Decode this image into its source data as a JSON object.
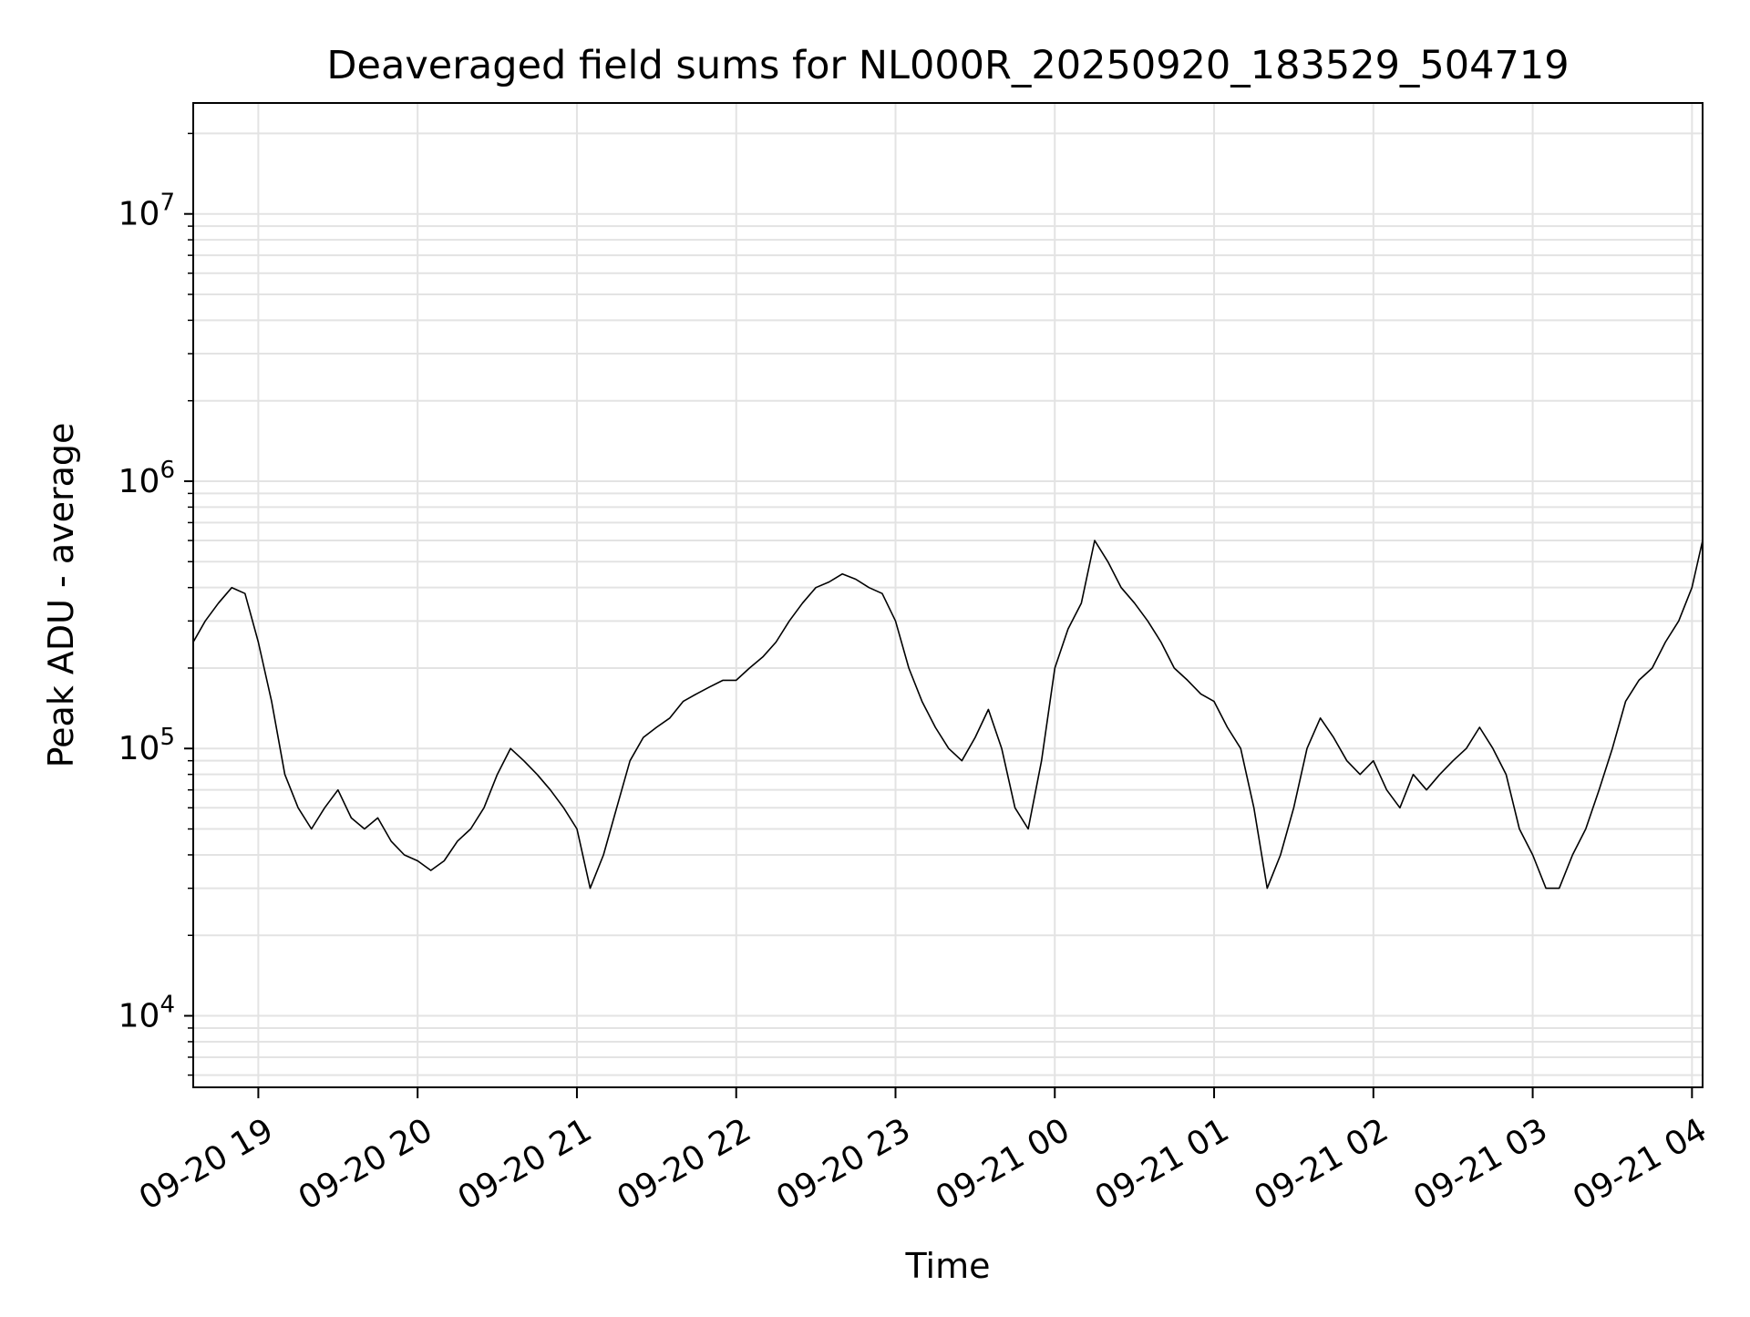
{
  "chart_data": {
    "type": "line",
    "title": "Deaveraged field sums for NL000R_20250920_183529_504719",
    "xlabel": "Time",
    "ylabel": "Peak ADU - average",
    "yscale": "log",
    "ylim": [
      5400,
      26000000
    ],
    "xlim": [
      "2025-09-20T18:35:29",
      "2025-09-21T04:04:00"
    ],
    "grid": true,
    "legend": "none",
    "line_color": "#000000",
    "x_ticks": [
      {
        "t": "2025-09-20T19:00:00",
        "label": "09-20 19"
      },
      {
        "t": "2025-09-20T20:00:00",
        "label": "09-20 20"
      },
      {
        "t": "2025-09-20T21:00:00",
        "label": "09-20 21"
      },
      {
        "t": "2025-09-20T22:00:00",
        "label": "09-20 22"
      },
      {
        "t": "2025-09-20T23:00:00",
        "label": "09-20 23"
      },
      {
        "t": "2025-09-21T00:00:00",
        "label": "09-21 00"
      },
      {
        "t": "2025-09-21T01:00:00",
        "label": "09-21 01"
      },
      {
        "t": "2025-09-21T02:00:00",
        "label": "09-21 02"
      },
      {
        "t": "2025-09-21T03:00:00",
        "label": "09-21 03"
      },
      {
        "t": "2025-09-21T04:00:00",
        "label": "09-21 04"
      }
    ],
    "y_ticks": [
      {
        "value": 10000,
        "base": "10",
        "exp": "4"
      },
      {
        "value": 100000,
        "base": "10",
        "exp": "5"
      },
      {
        "value": 1000000,
        "base": "10",
        "exp": "6"
      },
      {
        "value": 10000000,
        "base": "10",
        "exp": "7"
      }
    ],
    "series": [
      {
        "x": [
          "2025-09-20T18:35:29",
          "2025-09-20T18:40:00",
          "2025-09-20T18:45:00",
          "2025-09-20T18:50:00",
          "2025-09-20T18:55:00",
          "2025-09-20T19:00:00",
          "2025-09-20T19:05:00",
          "2025-09-20T19:10:00",
          "2025-09-20T19:15:00",
          "2025-09-20T19:20:00",
          "2025-09-20T19:25:00",
          "2025-09-20T19:30:00",
          "2025-09-20T19:35:00",
          "2025-09-20T19:40:00",
          "2025-09-20T19:45:00",
          "2025-09-20T19:50:00",
          "2025-09-20T19:55:00",
          "2025-09-20T20:00:00",
          "2025-09-20T20:05:00",
          "2025-09-20T20:10:00",
          "2025-09-20T20:15:00",
          "2025-09-20T20:20:00",
          "2025-09-20T20:25:00",
          "2025-09-20T20:30:00",
          "2025-09-20T20:35:00",
          "2025-09-20T20:40:00",
          "2025-09-20T20:45:00",
          "2025-09-20T20:50:00",
          "2025-09-20T20:55:00",
          "2025-09-20T21:00:00",
          "2025-09-20T21:05:00",
          "2025-09-20T21:10:00",
          "2025-09-20T21:15:00",
          "2025-09-20T21:20:00",
          "2025-09-20T21:25:00",
          "2025-09-20T21:30:00",
          "2025-09-20T21:35:00",
          "2025-09-20T21:40:00",
          "2025-09-20T21:45:00",
          "2025-09-20T21:50:00",
          "2025-09-20T21:55:00",
          "2025-09-20T22:00:00",
          "2025-09-20T22:05:00",
          "2025-09-20T22:10:00",
          "2025-09-20T22:15:00",
          "2025-09-20T22:20:00",
          "2025-09-20T22:25:00",
          "2025-09-20T22:30:00",
          "2025-09-20T22:35:00",
          "2025-09-20T22:40:00",
          "2025-09-20T22:45:00",
          "2025-09-20T22:50:00",
          "2025-09-20T22:55:00",
          "2025-09-20T23:00:00",
          "2025-09-20T23:05:00",
          "2025-09-20T23:10:00",
          "2025-09-20T23:15:00",
          "2025-09-20T23:20:00",
          "2025-09-20T23:25:00",
          "2025-09-20T23:30:00",
          "2025-09-20T23:35:00",
          "2025-09-20T23:40:00",
          "2025-09-20T23:45:00",
          "2025-09-20T23:50:00",
          "2025-09-20T23:55:00",
          "2025-09-21T00:00:00",
          "2025-09-21T00:05:00",
          "2025-09-21T00:10:00",
          "2025-09-21T00:15:00",
          "2025-09-21T00:20:00",
          "2025-09-21T00:25:00",
          "2025-09-21T00:30:00",
          "2025-09-21T00:35:00",
          "2025-09-21T00:40:00",
          "2025-09-21T00:45:00",
          "2025-09-21T00:50:00",
          "2025-09-21T00:55:00",
          "2025-09-21T01:00:00",
          "2025-09-21T01:05:00",
          "2025-09-21T01:10:00",
          "2025-09-21T01:15:00",
          "2025-09-21T01:20:00",
          "2025-09-21T01:25:00",
          "2025-09-21T01:30:00",
          "2025-09-21T01:35:00",
          "2025-09-21T01:40:00",
          "2025-09-21T01:45:00",
          "2025-09-21T01:50:00",
          "2025-09-21T01:55:00",
          "2025-09-21T02:00:00",
          "2025-09-21T02:05:00",
          "2025-09-21T02:10:00",
          "2025-09-21T02:15:00",
          "2025-09-21T02:20:00",
          "2025-09-21T02:25:00",
          "2025-09-21T02:30:00",
          "2025-09-21T02:35:00",
          "2025-09-21T02:40:00",
          "2025-09-21T02:45:00",
          "2025-09-21T02:50:00",
          "2025-09-21T02:55:00",
          "2025-09-21T03:00:00",
          "2025-09-21T03:05:00",
          "2025-09-21T03:10:00",
          "2025-09-21T03:15:00",
          "2025-09-21T03:20:00",
          "2025-09-21T03:25:00",
          "2025-09-21T03:30:00",
          "2025-09-21T03:35:00",
          "2025-09-21T03:40:00",
          "2025-09-21T03:45:00",
          "2025-09-21T03:50:00",
          "2025-09-21T03:55:00",
          "2025-09-21T04:00:00",
          "2025-09-21T04:04:00"
        ],
        "y": [
          250000,
          300000,
          350000,
          400000,
          380000,
          250000,
          150000,
          80000,
          60000,
          50000,
          60000,
          70000,
          55000,
          50000,
          55000,
          45000,
          40000,
          38000,
          35000,
          38000,
          45000,
          50000,
          60000,
          80000,
          100000,
          90000,
          80000,
          70000,
          60000,
          50000,
          30000,
          40000,
          60000,
          90000,
          110000,
          120000,
          130000,
          150000,
          160000,
          170000,
          180000,
          180000,
          200000,
          220000,
          250000,
          300000,
          350000,
          400000,
          420000,
          450000,
          430000,
          400000,
          380000,
          300000,
          200000,
          150000,
          120000,
          100000,
          90000,
          110000,
          140000,
          100000,
          60000,
          50000,
          90000,
          200000,
          280000,
          350000,
          600000,
          500000,
          400000,
          350000,
          300000,
          250000,
          200000,
          180000,
          160000,
          150000,
          120000,
          100000,
          60000,
          30000,
          40000,
          60000,
          100000,
          130000,
          110000,
          90000,
          80000,
          90000,
          70000,
          60000,
          80000,
          70000,
          80000,
          90000,
          100000,
          120000,
          100000,
          80000,
          50000,
          40000,
          30000,
          30000,
          40000,
          50000,
          70000,
          100000,
          150000,
          180000,
          200000,
          250000,
          300000,
          400000,
          600000
        ]
      }
    ]
  }
}
